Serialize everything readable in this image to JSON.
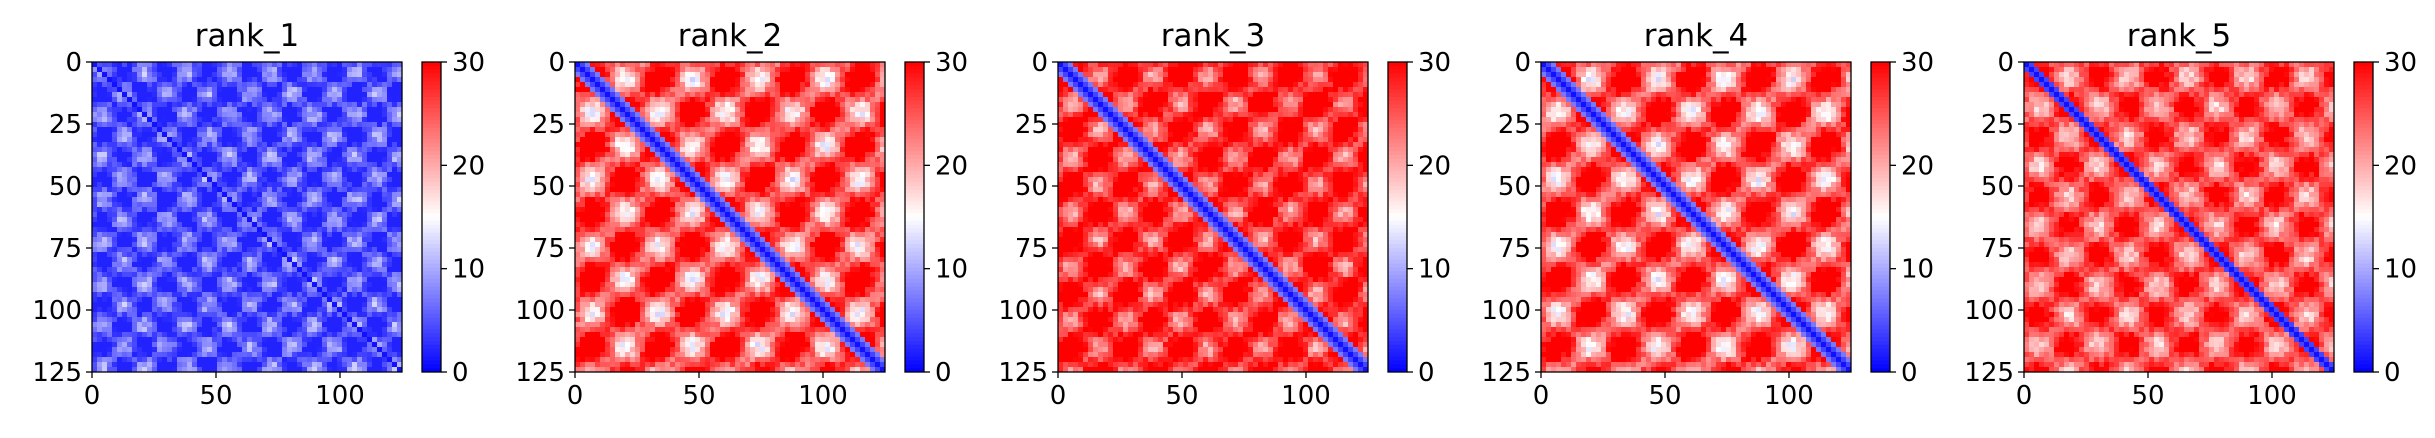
{
  "chart_data": [
    {
      "type": "heatmap",
      "title": "rank_1",
      "matrix_size": 125,
      "xticks": [
        0,
        50,
        100
      ],
      "yticks": [
        0,
        25,
        50,
        75,
        100,
        125
      ],
      "colorbar": {
        "min": 0,
        "max": 30,
        "ticks": [
          0,
          10,
          20,
          30
        ],
        "colormap": "bwr"
      },
      "pattern": {
        "diag_width": 2.0,
        "base": 8,
        "amp": 6,
        "period": 17,
        "bias": -0.6,
        "band": 0
      }
    },
    {
      "type": "heatmap",
      "title": "rank_2",
      "matrix_size": 125,
      "xticks": [
        0,
        50,
        100
      ],
      "yticks": [
        0,
        25,
        50,
        75,
        100,
        125
      ],
      "colorbar": {
        "min": 0,
        "max": 30,
        "ticks": [
          0,
          10,
          20,
          30
        ],
        "colormap": "bwr"
      },
      "pattern": {
        "diag_width": 4.5,
        "base": 24,
        "amp": 12,
        "period": 27,
        "bias": 0.2,
        "band": 1
      }
    },
    {
      "type": "heatmap",
      "title": "rank_3",
      "matrix_size": 125,
      "xticks": [
        0,
        50,
        100
      ],
      "yticks": [
        0,
        25,
        50,
        75,
        100,
        125
      ],
      "colorbar": {
        "min": 0,
        "max": 30,
        "ticks": [
          0,
          10,
          20,
          30
        ],
        "colormap": "bwr"
      },
      "pattern": {
        "diag_width": 4.5,
        "base": 24,
        "amp": 9,
        "period": 22,
        "bias": 0.5,
        "band": 1
      }
    },
    {
      "type": "heatmap",
      "title": "rank_4",
      "matrix_size": 125,
      "xticks": [
        0,
        50,
        100
      ],
      "yticks": [
        0,
        25,
        50,
        75,
        100,
        125
      ],
      "colorbar": {
        "min": 0,
        "max": 30,
        "ticks": [
          0,
          10,
          20,
          30
        ],
        "colormap": "bwr"
      },
      "pattern": {
        "diag_width": 4.5,
        "base": 24,
        "amp": 12,
        "period": 27,
        "bias": 0.2,
        "band": 1
      }
    },
    {
      "type": "heatmap",
      "title": "rank_5",
      "matrix_size": 125,
      "xticks": [
        0,
        50,
        100
      ],
      "yticks": [
        0,
        25,
        50,
        75,
        100,
        125
      ],
      "colorbar": {
        "min": 0,
        "max": 30,
        "ticks": [
          0,
          10,
          20,
          30
        ],
        "colormap": "bwr"
      },
      "pattern": {
        "diag_width": 3.5,
        "base": 23,
        "amp": 8,
        "period": 24,
        "bias": 0.3,
        "band": 0
      }
    }
  ]
}
